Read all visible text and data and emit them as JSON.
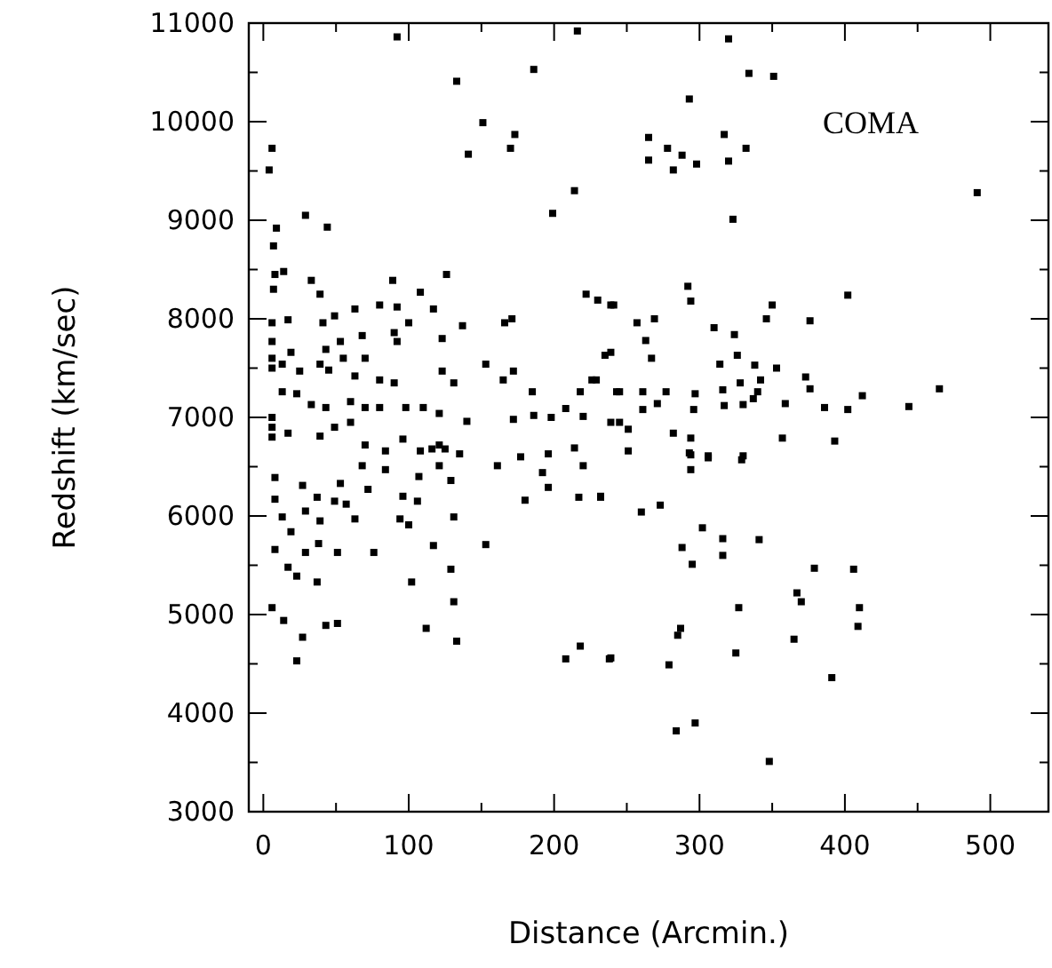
{
  "chart_data": {
    "type": "scatter",
    "xlabel": "Distance (Arcmin.)",
    "ylabel": "Redshift (km/sec)",
    "annotations": [
      "COMA"
    ],
    "marker": "square",
    "grid": false,
    "xlim": [
      -10,
      540
    ],
    "ylim": [
      3000,
      11000
    ],
    "xticks": [
      0,
      {
        "value": 50,
        "label": null
      },
      100,
      {
        "value": 150,
        "label": null
      },
      200,
      {
        "value": 250,
        "label": null
      },
      300,
      {
        "value": 350,
        "label": null
      },
      400,
      {
        "value": 450,
        "label": null
      },
      500
    ],
    "yticks": [
      3000,
      {
        "value": 3500,
        "label": null
      },
      4000,
      {
        "value": 4500,
        "label": null
      },
      5000,
      {
        "value": 5500,
        "label": null
      },
      6000,
      {
        "value": 6500,
        "label": null
      },
      7000,
      {
        "value": 7500,
        "label": null
      },
      8000,
      {
        "value": 8500,
        "label": null
      },
      9000,
      {
        "value": 9500,
        "label": null
      },
      10000,
      {
        "value": 10500,
        "label": null
      },
      11000
    ],
    "series": [
      {
        "color": "#000000",
        "x": [
          92,
          216,
          186,
          133,
          151,
          173,
          170,
          141,
          6,
          4,
          214,
          199,
          9,
          29,
          44,
          7,
          33,
          39,
          8,
          14,
          7,
          89,
          126,
          108,
          92,
          80,
          63,
          49,
          41,
          117,
          100,
          137,
          166,
          171,
          222,
          230,
          241,
          123,
          92,
          90,
          68,
          53,
          43,
          6,
          17,
          6,
          6,
          6,
          13,
          19,
          25,
          39,
          45,
          55,
          63,
          70,
          80,
          90,
          123,
          131,
          153,
          165,
          172,
          185,
          218,
          226,
          243,
          235,
          13,
          23,
          33,
          43,
          60,
          70,
          80,
          98,
          110,
          121,
          140,
          172,
          186,
          198,
          208,
          220,
          245,
          6,
          6,
          6,
          17,
          39,
          49,
          60,
          70,
          84,
          96,
          108,
          116,
          125,
          135,
          161,
          177,
          196,
          214,
          220,
          320,
          334,
          351,
          293,
          265,
          278,
          265,
          282,
          288,
          298,
          317,
          332,
          320,
          491,
          323,
          292,
          294,
          350,
          346,
          376,
          402,
          239,
          257,
          269,
          310,
          324,
          263,
          267,
          239,
          326,
          314,
          338,
          353,
          229,
          245,
          261,
          277,
          297,
          316,
          328,
          342,
          340,
          373,
          376,
          412,
          402,
          386,
          359,
          444,
          465,
          261,
          271,
          296,
          317,
          330,
          337,
          251,
          239,
          282,
          294,
          293,
          306,
          330,
          357,
          393,
          8,
          8,
          13,
          19,
          8,
          17,
          23,
          29,
          27,
          37,
          39,
          49,
          53,
          57,
          63,
          72,
          68,
          84,
          96,
          107,
          106,
          94,
          100,
          121,
          129,
          131,
          117,
          153,
          129,
          180,
          196,
          192,
          217,
          232,
          29,
          38,
          51,
          37,
          76,
          102,
          6,
          14,
          27,
          43,
          51,
          23,
          112,
          131,
          133,
          208,
          218,
          239,
          121,
          251,
          294,
          294,
          306,
          329,
          232,
          260,
          273,
          302,
          288,
          316,
          295,
          316,
          341,
          379,
          406,
          367,
          370,
          327,
          410,
          409,
          287,
          285,
          365,
          238,
          279,
          325,
          391,
          284,
          297,
          348
        ],
        "values": [
          10860,
          10920,
          10530,
          10410,
          9990,
          9870,
          9730,
          9670,
          9730,
          9510,
          9300,
          9070,
          8920,
          9050,
          8930,
          8740,
          8390,
          8250,
          8450,
          8480,
          8300,
          8390,
          8450,
          8270,
          8120,
          8140,
          8100,
          8030,
          7960,
          8100,
          7960,
          7930,
          7960,
          8000,
          8250,
          8190,
          8140,
          7800,
          7770,
          7860,
          7830,
          7770,
          7690,
          7960,
          7990,
          7770,
          7600,
          7500,
          7540,
          7660,
          7470,
          7540,
          7480,
          7600,
          7420,
          7600,
          7380,
          7350,
          7470,
          7350,
          7540,
          7380,
          7470,
          7260,
          7260,
          7380,
          7260,
          7630,
          7260,
          7240,
          7130,
          7100,
          7160,
          7100,
          7100,
          7100,
          7100,
          7040,
          6960,
          6980,
          7020,
          7000,
          7090,
          7010,
          6950,
          7000,
          6900,
          6800,
          6840,
          6810,
          6900,
          6950,
          6720,
          6660,
          6780,
          6660,
          6680,
          6680,
          6630,
          6510,
          6600,
          6630,
          6690,
          6510,
          10840,
          10490,
          10460,
          10230,
          9840,
          9730,
          9610,
          9510,
          9660,
          9570,
          9870,
          9730,
          9600,
          9280,
          9010,
          8330,
          8180,
          8140,
          8000,
          7980,
          8240,
          8140,
          7960,
          8000,
          7910,
          7840,
          7780,
          7600,
          7660,
          7630,
          7540,
          7530,
          7500,
          7380,
          7260,
          7260,
          7260,
          7240,
          7280,
          7350,
          7380,
          7260,
          7410,
          7290,
          7220,
          7080,
          7100,
          7140,
          7110,
          7290,
          7080,
          7140,
          7080,
          7120,
          7130,
          7190,
          6880,
          6950,
          6840,
          6790,
          6640,
          6610,
          6610,
          6790,
          6760,
          6390,
          6170,
          5990,
          5840,
          5660,
          5480,
          5390,
          6050,
          6310,
          6190,
          5950,
          6150,
          6330,
          6120,
          5970,
          6270,
          6510,
          6470,
          6200,
          6400,
          6150,
          5970,
          5910,
          6510,
          6360,
          5990,
          5700,
          5710,
          5460,
          6160,
          6290,
          6440,
          6190,
          6190,
          5630,
          5720,
          5630,
          5330,
          5630,
          5330,
          5070,
          4940,
          4770,
          4890,
          4910,
          4530,
          4860,
          5130,
          4730,
          4550,
          4680,
          4560,
          6720,
          6660,
          6620,
          6470,
          6590,
          6570,
          6200,
          6040,
          6110,
          5880,
          5680,
          5770,
          5510,
          5600,
          5760,
          5470,
          5460,
          5220,
          5130,
          5070,
          5070,
          4880,
          4860,
          4790,
          4750,
          4550,
          4490,
          4610,
          4360,
          3820,
          3900,
          3510
        ]
      }
    ]
  }
}
